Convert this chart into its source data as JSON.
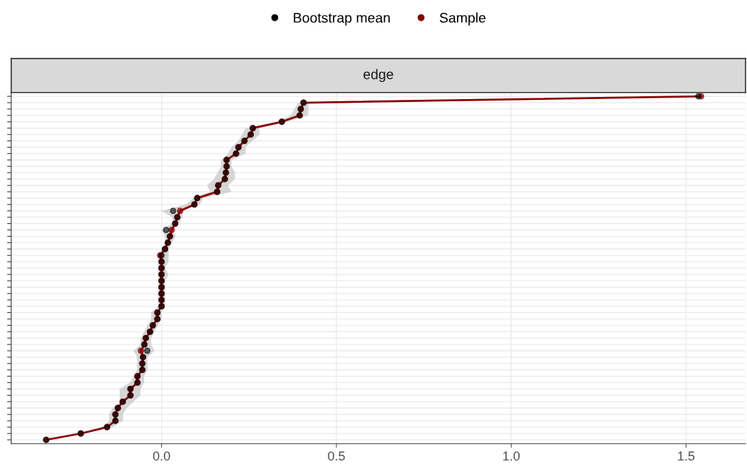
{
  "chart_data": {
    "type": "scatter",
    "title": "edge",
    "orientation": "horizontal",
    "categories": [
      null,
      null,
      null,
      null,
      null,
      null,
      null,
      null,
      null,
      null,
      null,
      null,
      null,
      null,
      null,
      null,
      null,
      null,
      null,
      null,
      null,
      null,
      null,
      null,
      null,
      null,
      null,
      null,
      null,
      null,
      null,
      null,
      null,
      null,
      null,
      null,
      null,
      null,
      null,
      null,
      null,
      null,
      null,
      null,
      null,
      null,
      null,
      null,
      null,
      null,
      null,
      null,
      null,
      null,
      null
    ],
    "series": [
      {
        "name": "Bootstrap mean",
        "color": "#000000",
        "values": [
          1.535,
          0.406,
          0.398,
          0.395,
          0.344,
          0.261,
          0.255,
          0.237,
          0.22,
          0.213,
          0.186,
          0.186,
          0.184,
          0.181,
          0.162,
          0.159,
          0.102,
          0.094,
          0.033,
          0.045,
          0.039,
          0.013,
          0.024,
          0.018,
          0.01,
          0.0,
          0.0,
          0.0,
          0.0,
          0.0,
          0.0,
          0.0,
          0.0,
          0.0,
          -0.012,
          -0.012,
          -0.025,
          -0.033,
          -0.045,
          -0.049,
          -0.041,
          -0.053,
          -0.055,
          -0.055,
          -0.069,
          -0.069,
          -0.089,
          -0.089,
          -0.111,
          -0.125,
          -0.132,
          -0.132,
          -0.156,
          -0.231,
          -0.33
        ],
        "lower": [
          1.5,
          0.39,
          0.38,
          0.37,
          0.33,
          0.24,
          0.23,
          0.22,
          0.2,
          0.19,
          0.17,
          0.17,
          0.16,
          0.15,
          0.13,
          0.14,
          0.09,
          0.07,
          0.0,
          0.03,
          0.03,
          0.0,
          0.01,
          0.01,
          0.0,
          -0.01,
          -0.01,
          -0.01,
          -0.01,
          -0.01,
          -0.01,
          -0.01,
          -0.01,
          -0.01,
          -0.03,
          -0.03,
          -0.04,
          -0.05,
          -0.06,
          -0.06,
          -0.08,
          -0.07,
          -0.07,
          -0.07,
          -0.08,
          -0.09,
          -0.12,
          -0.12,
          -0.12,
          -0.14,
          -0.15,
          -0.15,
          -0.17,
          -0.24,
          -0.34
        ],
        "upper": [
          1.6,
          0.42,
          0.42,
          0.42,
          0.36,
          0.28,
          0.28,
          0.26,
          0.24,
          0.24,
          0.2,
          0.2,
          0.21,
          0.21,
          0.19,
          0.2,
          0.12,
          0.11,
          0.06,
          0.06,
          0.05,
          0.03,
          0.04,
          0.03,
          0.02,
          0.02,
          0.02,
          0.01,
          0.02,
          0.01,
          0.01,
          0.01,
          0.01,
          0.01,
          0.0,
          0.0,
          -0.01,
          -0.02,
          -0.03,
          -0.03,
          -0.02,
          -0.04,
          -0.04,
          -0.04,
          -0.05,
          -0.05,
          -0.06,
          -0.06,
          -0.08,
          -0.1,
          -0.11,
          -0.11,
          -0.14,
          -0.22,
          -0.32
        ]
      },
      {
        "name": "Sample",
        "type": "line",
        "color": "#8b0000",
        "values": [
          1.543,
          0.406,
          0.398,
          0.395,
          0.344,
          0.261,
          0.255,
          0.237,
          0.22,
          0.213,
          0.186,
          0.186,
          0.184,
          0.181,
          0.162,
          0.159,
          0.102,
          0.094,
          0.053,
          0.045,
          0.039,
          0.029,
          0.024,
          0.018,
          0.01,
          -0.004,
          0.0,
          0.0,
          0.0,
          0.0,
          0.0,
          0.0,
          0.0,
          0.0,
          -0.012,
          -0.012,
          -0.025,
          -0.033,
          -0.045,
          -0.049,
          -0.059,
          -0.053,
          -0.055,
          -0.055,
          -0.069,
          -0.069,
          -0.089,
          -0.089,
          -0.111,
          -0.125,
          -0.132,
          -0.132,
          -0.156,
          -0.231,
          -0.33
        ]
      }
    ],
    "xlim": [
      -0.43,
      1.67
    ],
    "xticks": [
      {
        "value": 0,
        "label": "0.0"
      },
      {
        "value": 0.5,
        "label": "0.5"
      },
      {
        "value": 1,
        "label": "1.0"
      },
      {
        "value": 1.5,
        "label": "1.5"
      }
    ],
    "tick_labels": "x",
    "grid": true,
    "legend": "top",
    "marker": "circle"
  }
}
